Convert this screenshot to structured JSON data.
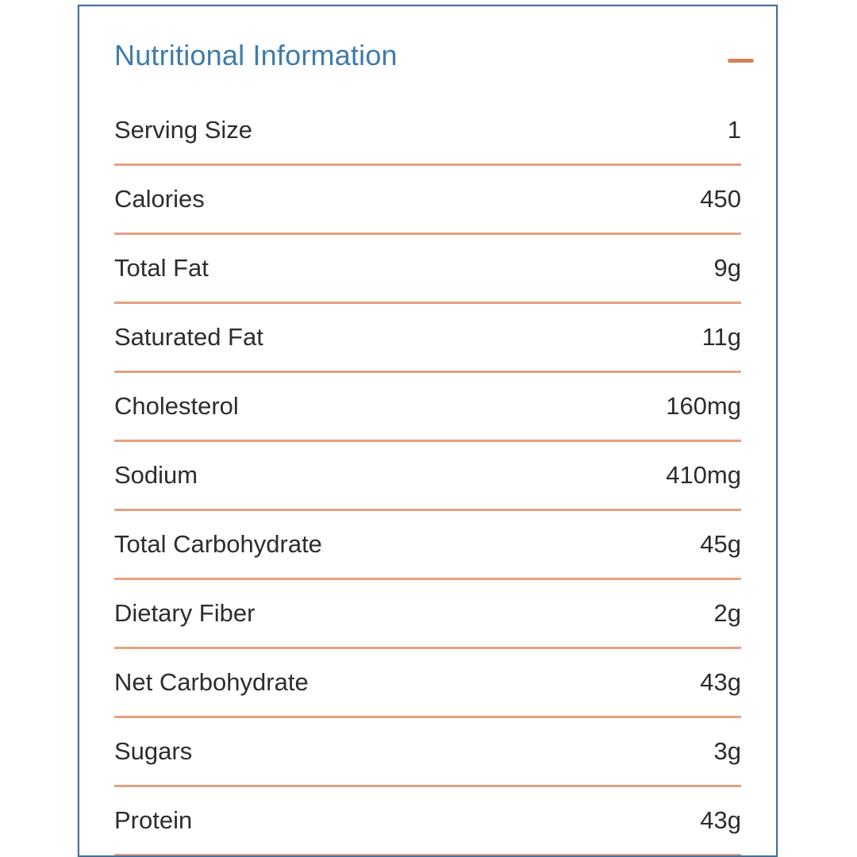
{
  "panel": {
    "title": "Nutritional Information",
    "collapse_icon": "minus",
    "rows": [
      {
        "label": "Serving Size",
        "value": "1"
      },
      {
        "label": "Calories",
        "value": "450"
      },
      {
        "label": "Total Fat",
        "value": "9g"
      },
      {
        "label": "Saturated Fat",
        "value": "11g"
      },
      {
        "label": "Cholesterol",
        "value": "160mg"
      },
      {
        "label": "Sodium",
        "value": "410mg"
      },
      {
        "label": "Total Carbohydrate",
        "value": "45g"
      },
      {
        "label": "Dietary Fiber",
        "value": "2g"
      },
      {
        "label": "Net Carbohydrate",
        "value": "43g"
      },
      {
        "label": "Sugars",
        "value": "3g"
      },
      {
        "label": "Protein",
        "value": "43g"
      }
    ],
    "colors": {
      "border": "#46719c",
      "title": "#3f7cab",
      "divider": "#e2a183",
      "accent": "#d5815f",
      "text": "#2d2d2d"
    }
  }
}
